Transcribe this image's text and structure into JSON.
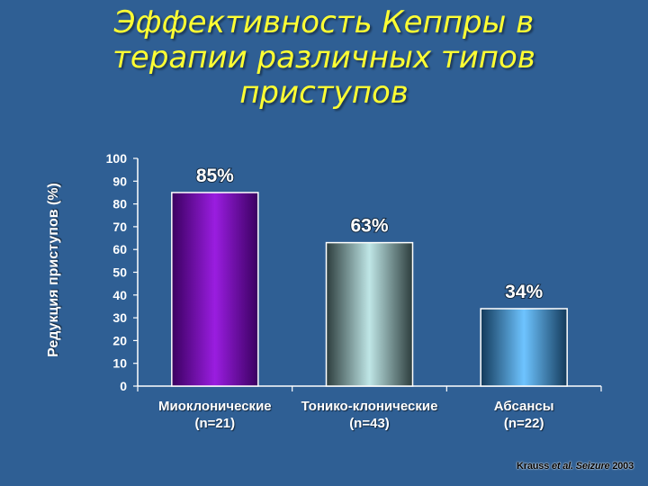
{
  "title_lines": [
    "Эффективность Кеппры в",
    "терапии различных типов",
    "приступов"
  ],
  "source": {
    "author": "Krauss",
    "etal": "et al.",
    "journal": "Seizure",
    "year": "2003"
  },
  "chart_data": {
    "type": "bar",
    "title": "Эффективность Кеппры в терапии различных типов приступов",
    "ylabel": "Редукция приступов (%)",
    "xlabel": "",
    "ylim": [
      0,
      100
    ],
    "yticks": [
      0,
      10,
      20,
      30,
      40,
      50,
      60,
      70,
      80,
      90,
      100
    ],
    "grid": false,
    "categories": [
      {
        "name": "Миоклонические",
        "n": "(n=21)"
      },
      {
        "name": "Тонико-клонические",
        "n": "(n=43)"
      },
      {
        "name": "Абсансы",
        "n": "(n=22)"
      }
    ],
    "values": [
      85,
      63,
      34
    ],
    "data_labels": [
      "85%",
      "63%",
      "34%"
    ],
    "colors": {
      "bar1": [
        "#3a0060",
        "#9a1de0",
        "#3a0060"
      ],
      "bar2": [
        "#2c3c3c",
        "#bfe6e6",
        "#2c3c3c"
      ],
      "bar3": [
        "#13395a",
        "#6ec4ff",
        "#13395a"
      ]
    }
  }
}
